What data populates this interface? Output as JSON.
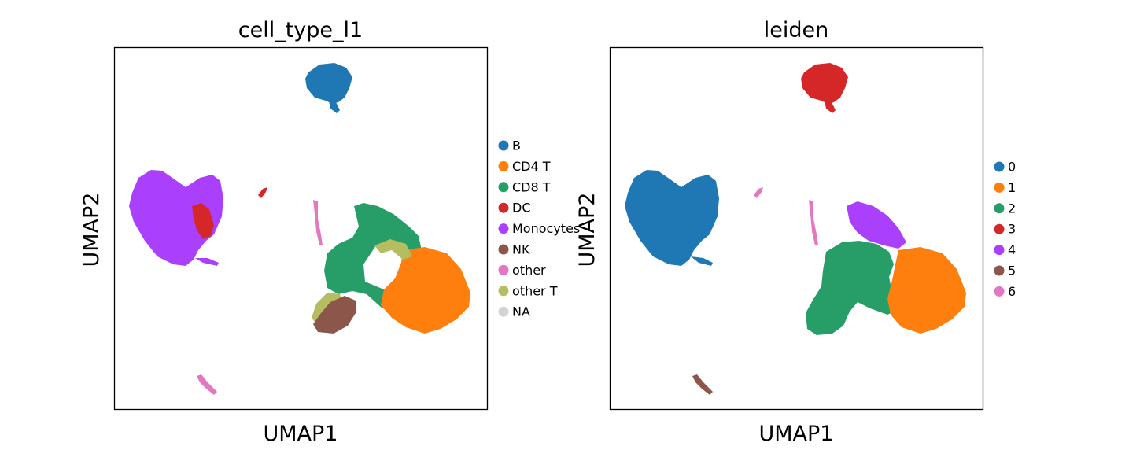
{
  "chart_data": [
    {
      "type": "scatter",
      "title": "cell_type_l1",
      "xlabel": "UMAP1",
      "ylabel": "UMAP2",
      "grid": false,
      "ticks": false,
      "legend_placement": "right",
      "legend": [
        {
          "label": "B",
          "color": "#1f77b4"
        },
        {
          "label": "CD4 T",
          "color": "#ff7f0e"
        },
        {
          "label": "CD8 T",
          "color": "#279e68"
        },
        {
          "label": "DC",
          "color": "#d62728"
        },
        {
          "label": "Monocytes",
          "color": "#aa40fc"
        },
        {
          "label": "NK",
          "color": "#8c564b"
        },
        {
          "label": "other",
          "color": "#e377c2"
        },
        {
          "label": "other T",
          "color": "#b5bd61"
        },
        {
          "label": "NA",
          "color": "#d3d3d3"
        }
      ]
    },
    {
      "type": "scatter",
      "title": "leiden",
      "xlabel": "UMAP1",
      "ylabel": "UMAP2",
      "grid": false,
      "ticks": false,
      "legend_placement": "right",
      "legend": [
        {
          "label": "0",
          "color": "#1f77b4"
        },
        {
          "label": "1",
          "color": "#ff7f0e"
        },
        {
          "label": "2",
          "color": "#279e68"
        },
        {
          "label": "3",
          "color": "#d62728"
        },
        {
          "label": "4",
          "color": "#aa40fc"
        },
        {
          "label": "5",
          "color": "#8c564b"
        },
        {
          "label": "6",
          "color": "#e377c2"
        }
      ]
    }
  ]
}
